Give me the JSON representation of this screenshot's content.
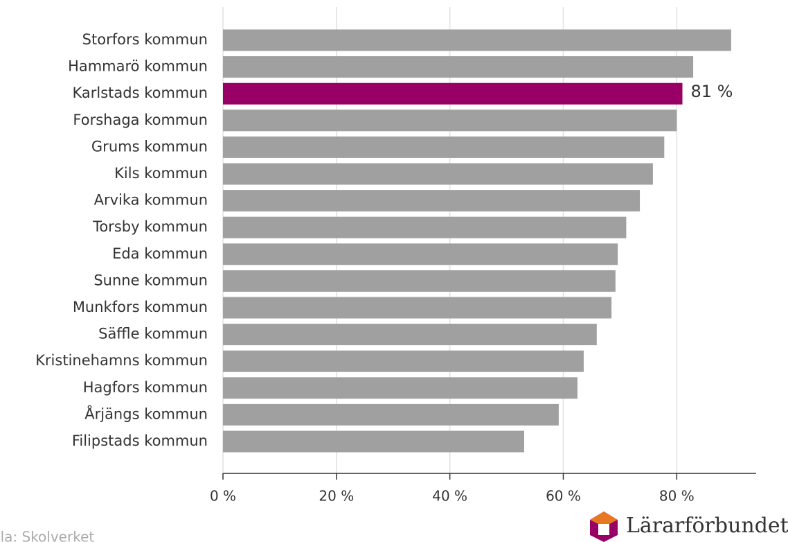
{
  "chart_data": {
    "type": "barh",
    "categories": [
      "Storfors kommun",
      "Hammarö kommun",
      "Karlstads kommun",
      "Forshaga kommun",
      "Grums kommun",
      "Kils kommun",
      "Arvika kommun",
      "Torsby kommun",
      "Eda kommun",
      "Sunne kommun",
      "Munkfors kommun",
      "Säffle kommun",
      "Kristinehamns kommun",
      "Hagfors kommun",
      "Årjängs kommun",
      "Filipstads kommun"
    ],
    "values": [
      89.6,
      82.9,
      81,
      80.0,
      77.8,
      75.8,
      73.5,
      71.1,
      69.6,
      69.2,
      68.5,
      65.9,
      63.6,
      62.5,
      59.2,
      53.1
    ],
    "value_labels": [
      null,
      null,
      "81 %",
      null,
      null,
      null,
      null,
      null,
      null,
      null,
      null,
      null,
      null,
      null,
      null,
      null
    ],
    "colors": [
      "#a0a0a0",
      "#a0a0a0",
      "#990066",
      "#a0a0a0",
      "#a0a0a0",
      "#a0a0a0",
      "#a0a0a0",
      "#a0a0a0",
      "#a0a0a0",
      "#a0a0a0",
      "#a0a0a0",
      "#a0a0a0",
      "#a0a0a0",
      "#a0a0a0",
      "#a0a0a0",
      "#a0a0a0"
    ],
    "xlim": [
      0,
      94
    ],
    "xticks": [
      {
        "value": 0,
        "label": "0 %"
      },
      {
        "value": 20,
        "label": "20 %"
      },
      {
        "value": 40,
        "label": "40 %"
      },
      {
        "value": 60,
        "label": "60 %"
      },
      {
        "value": 80,
        "label": "80 %"
      }
    ],
    "grid": true,
    "source": "Källa: Skolverket",
    "logo": "Lärarförbundet"
  }
}
